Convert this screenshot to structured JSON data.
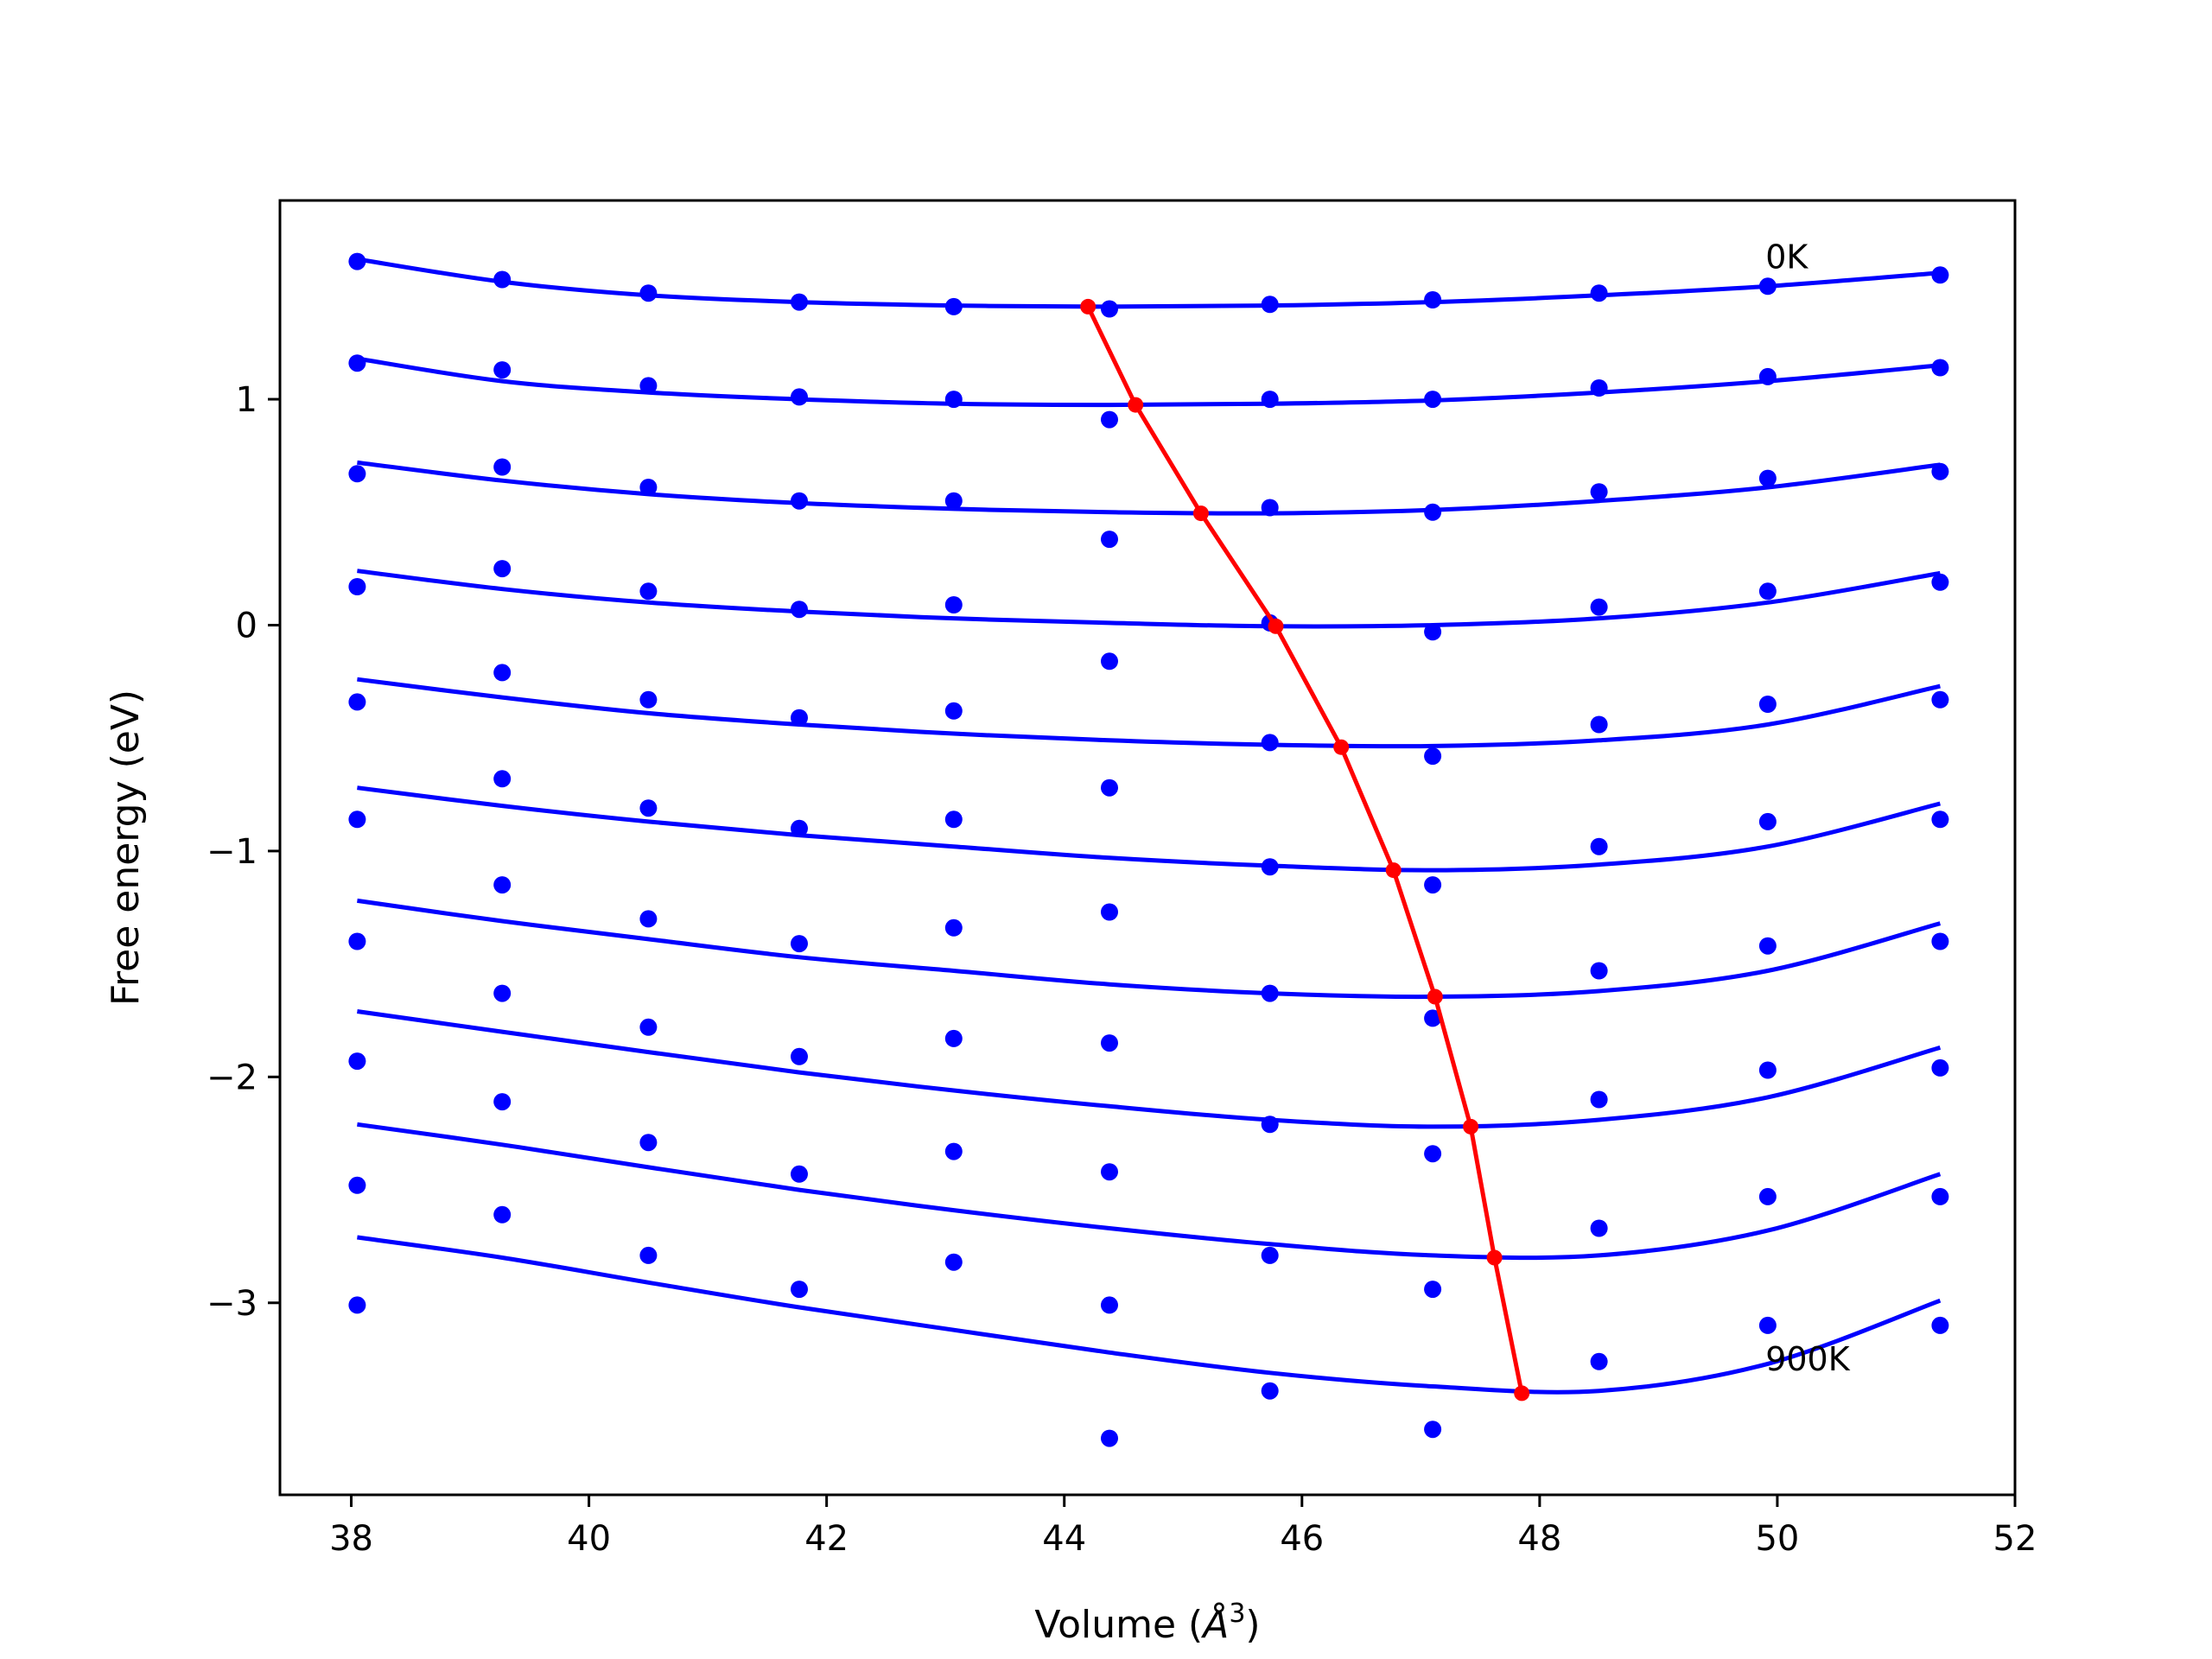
{
  "chart_data": {
    "type": "scatter",
    "title": "",
    "xlabel_main": "Volume (",
    "xlabel_unit": "Å",
    "xlabel_sup": "3",
    "xlabel_end": ")",
    "ylabel": "Free energy (eV)",
    "xlim": [
      37.4,
      52.0
    ],
    "ylim": [
      -3.85,
      1.88
    ],
    "x_ticks": [
      38,
      40,
      42,
      44,
      46,
      48,
      50,
      52
    ],
    "x_tick_labels": [
      "38",
      "40",
      "42",
      "44",
      "46",
      "48",
      "50",
      "52"
    ],
    "y_ticks": [
      -3,
      -2,
      -1,
      0,
      1
    ],
    "y_tick_labels": [
      "−3",
      "−2",
      "−1",
      "0",
      "1"
    ],
    "grid": false,
    "colors": {
      "data": "#0000ff",
      "fit": "#0000ff",
      "minima": "#ff0000"
    },
    "volumes": [
      38.05,
      39.27,
      40.5,
      41.77,
      43.07,
      44.38,
      45.73,
      47.1,
      48.5,
      49.92,
      51.37
    ],
    "series": [
      {
        "temperature_index": 0,
        "points": [
          1.61,
          1.53,
          1.47,
          1.43,
          1.41,
          1.4,
          1.42,
          1.44,
          1.47,
          1.5,
          1.55
        ],
        "fit": [
          1.62,
          1.52,
          1.46,
          1.43,
          1.415,
          1.41,
          1.415,
          1.43,
          1.46,
          1.5,
          1.56
        ]
      },
      {
        "temperature_index": 1,
        "points": [
          1.16,
          1.13,
          1.06,
          1.01,
          1.0,
          0.91,
          1.0,
          1.0,
          1.05,
          1.1,
          1.14
        ],
        "fit": [
          1.18,
          1.08,
          1.03,
          1.0,
          0.98,
          0.975,
          0.98,
          0.995,
          1.03,
          1.08,
          1.15
        ]
      },
      {
        "temperature_index": 2,
        "points": [
          0.67,
          0.7,
          0.61,
          0.55,
          0.55,
          0.38,
          0.52,
          0.5,
          0.59,
          0.65,
          0.68
        ],
        "fit": [
          0.72,
          0.64,
          0.58,
          0.54,
          0.515,
          0.5,
          0.495,
          0.51,
          0.55,
          0.61,
          0.71
        ]
      },
      {
        "temperature_index": 3,
        "points": [
          0.17,
          0.25,
          0.15,
          0.07,
          0.09,
          -0.16,
          0.01,
          -0.03,
          0.08,
          0.15,
          0.19
        ],
        "fit": [
          0.24,
          0.16,
          0.1,
          0.06,
          0.03,
          0.01,
          -0.005,
          0.0,
          0.03,
          0.1,
          0.23
        ]
      },
      {
        "temperature_index": 4,
        "points": [
          -0.34,
          -0.21,
          -0.33,
          -0.41,
          -0.38,
          -0.72,
          -0.52,
          -0.58,
          -0.44,
          -0.35,
          -0.33
        ],
        "fit": [
          -0.24,
          -0.32,
          -0.39,
          -0.44,
          -0.48,
          -0.51,
          -0.53,
          -0.535,
          -0.51,
          -0.44,
          -0.27
        ]
      },
      {
        "temperature_index": 5,
        "points": [
          -0.86,
          -0.68,
          -0.81,
          -0.9,
          -0.86,
          -1.27,
          -1.07,
          -1.15,
          -0.98,
          -0.87,
          -0.86
        ],
        "fit": [
          -0.72,
          -0.8,
          -0.87,
          -0.93,
          -0.98,
          -1.03,
          -1.065,
          -1.085,
          -1.06,
          -0.98,
          -0.79
        ]
      },
      {
        "temperature_index": 6,
        "points": [
          -1.4,
          -1.15,
          -1.3,
          -1.41,
          -1.34,
          -1.85,
          -1.63,
          -1.74,
          -1.53,
          -1.42,
          -1.4
        ],
        "fit": [
          -1.22,
          -1.31,
          -1.39,
          -1.47,
          -1.53,
          -1.59,
          -1.63,
          -1.645,
          -1.62,
          -1.53,
          -1.32
        ]
      },
      {
        "temperature_index": 7,
        "points": [
          -1.93,
          -1.63,
          -1.78,
          -1.91,
          -1.83,
          -2.42,
          -2.21,
          -2.34,
          -2.1,
          -1.97,
          -1.96
        ],
        "fit": [
          -1.71,
          -1.8,
          -1.89,
          -1.98,
          -2.06,
          -2.13,
          -2.19,
          -2.22,
          -2.19,
          -2.09,
          -1.87
        ]
      },
      {
        "temperature_index": 8,
        "points": [
          -2.48,
          -2.11,
          -2.29,
          -2.43,
          -2.33,
          -3.01,
          -2.79,
          -2.94,
          -2.67,
          -2.53,
          -2.53
        ],
        "fit": [
          -2.21,
          -2.3,
          -2.4,
          -2.5,
          -2.59,
          -2.67,
          -2.74,
          -2.79,
          -2.79,
          -2.68,
          -2.43
        ]
      },
      {
        "temperature_index": 9,
        "points": [
          -3.01,
          -2.61,
          -2.79,
          -2.94,
          -2.82,
          -3.6,
          -3.39,
          -3.56,
          -3.26,
          -3.1,
          -3.1
        ],
        "fit": [
          -2.71,
          -2.8,
          -2.91,
          -3.02,
          -3.12,
          -3.22,
          -3.31,
          -3.37,
          -3.39,
          -3.27,
          -2.99
        ]
      }
    ],
    "minima_curve": {
      "x": [
        44.2,
        44.6,
        45.15,
        45.78,
        46.33,
        46.77,
        47.12,
        47.42,
        47.62,
        47.85
      ],
      "y": [
        1.41,
        0.975,
        0.495,
        -0.005,
        -0.54,
        -1.085,
        -1.645,
        -2.22,
        -2.8,
        -3.4
      ]
    },
    "annotations": [
      {
        "text": "0K",
        "x": 49.9,
        "y": 1.58
      },
      {
        "text": "900K",
        "x": 49.9,
        "y": -3.3
      }
    ]
  }
}
